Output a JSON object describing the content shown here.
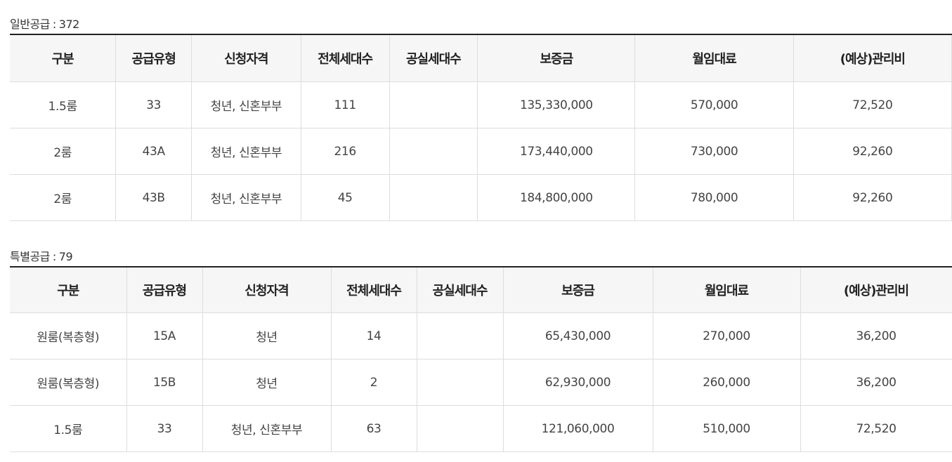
{
  "general": {
    "label": "일반공급",
    "separator": ":",
    "count": "372",
    "headers": [
      "구분",
      "공급유형",
      "신청자격",
      "전체세대수",
      "공실세대수",
      "보증금",
      "월임대료",
      "(예상)관리비"
    ],
    "rows": [
      [
        "1.5룸",
        "33",
        "청년, 신혼부부",
        "111",
        "",
        "135,330,000",
        "570,000",
        "72,520"
      ],
      [
        "2룸",
        "43A",
        "청년, 신혼부부",
        "216",
        "",
        "173,440,000",
        "730,000",
        "92,260"
      ],
      [
        "2룸",
        "43B",
        "청년, 신혼부부",
        "45",
        "",
        "184,800,000",
        "780,000",
        "92,260"
      ]
    ]
  },
  "special": {
    "label": "특별공급",
    "separator": ":",
    "count": "79",
    "headers": [
      "구분",
      "공급유형",
      "신청자격",
      "전체세대수",
      "공실세대수",
      "보증금",
      "월임대료",
      "(예상)관리비"
    ],
    "rows": [
      [
        "원룸(복층형)",
        "15A",
        "청년",
        "14",
        "",
        "65,430,000",
        "270,000",
        "36,200"
      ],
      [
        "원룸(복층형)",
        "15B",
        "청년",
        "2",
        "",
        "62,930,000",
        "260,000",
        "36,200"
      ],
      [
        "1.5룸",
        "33",
        "청년, 신혼부부",
        "63",
        "",
        "121,060,000",
        "510,000",
        "72,520"
      ]
    ]
  }
}
